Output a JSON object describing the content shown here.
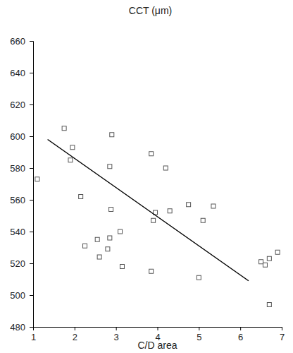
{
  "chart_data": {
    "type": "scatter",
    "y_label": "CCT (μm)",
    "x_label": "C/D area",
    "xlim": [
      1,
      7
    ],
    "ylim": [
      480,
      660
    ],
    "xticks": [
      1,
      2,
      3,
      4,
      5,
      6,
      7
    ],
    "yticks": [
      480,
      500,
      520,
      540,
      560,
      580,
      600,
      620,
      640,
      660
    ],
    "grid": false,
    "series": [
      {
        "type": "scatter",
        "marker": "square",
        "color": "#555555",
        "x": [
          1.1,
          1.75,
          1.9,
          1.95,
          2.15,
          2.25,
          2.55,
          2.6,
          2.8,
          2.85,
          2.85,
          2.88,
          2.9,
          3.1,
          3.15,
          3.85,
          3.85,
          3.9,
          3.95,
          4.2,
          4.3,
          4.75,
          5.0,
          5.1,
          5.35,
          6.5,
          6.6,
          6.7,
          6.7,
          6.9
        ],
        "values": [
          573,
          605,
          585,
          593,
          562,
          531,
          535,
          524,
          529,
          536,
          581,
          554,
          601,
          540,
          518,
          589,
          515,
          547,
          552,
          580,
          553,
          557,
          511,
          547,
          556,
          521,
          519,
          494,
          523,
          527
        ]
      },
      {
        "type": "line",
        "line_style": "solid",
        "color": "#000000",
        "x": [
          1.35,
          6.2
        ],
        "values": [
          598,
          509
        ]
      }
    ]
  }
}
